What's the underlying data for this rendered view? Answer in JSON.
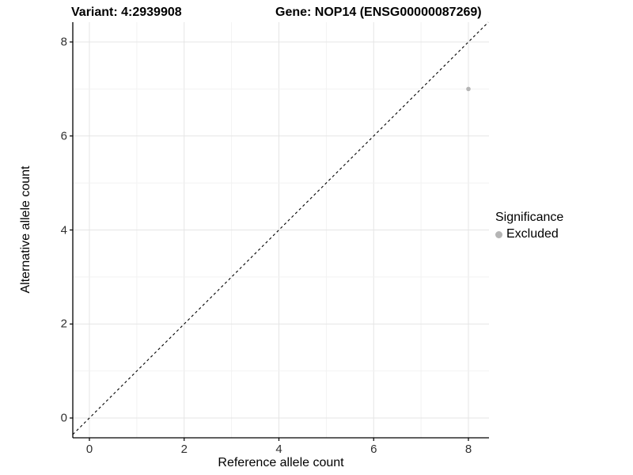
{
  "titles": {
    "variant": "Variant: 4:2939908",
    "gene": "Gene: NOP14 (ENSG00000087269)"
  },
  "chart_data": {
    "type": "scatter",
    "title_left": "Variant: 4:2939908",
    "title_right": "Gene: NOP14 (ENSG00000087269)",
    "xlabel": "Reference allele count",
    "ylabel": "Alternative allele count",
    "xlim": [
      -0.35,
      8.43
    ],
    "ylim": [
      -0.42,
      8.42
    ],
    "xticks": [
      0,
      2,
      4,
      6,
      8
    ],
    "yticks": [
      0,
      2,
      4,
      6,
      8
    ],
    "x_tick_labels": [
      "0",
      "2",
      "4",
      "6",
      "8"
    ],
    "y_tick_labels": [
      "0",
      "2",
      "4",
      "6",
      "8"
    ],
    "grid": {
      "on": true,
      "minor_step": 1,
      "major_step": 2,
      "major_color": "#e5e5e5",
      "minor_color": "#f2f2f2"
    },
    "identity_line": {
      "equation": "y = x",
      "style": "dashed",
      "color": "#000000"
    },
    "series": [
      {
        "name": "Excluded",
        "color": "#b5b5b5",
        "points": [
          {
            "x": 8,
            "y": 7
          }
        ]
      }
    ],
    "legend": {
      "title": "Significance",
      "position": "right",
      "items": [
        {
          "label": "Excluded",
          "color": "#b5b5b5"
        }
      ]
    }
  },
  "colors": {
    "axis_line": "#000000",
    "tick_text": "#303030",
    "background": "#ffffff",
    "point": "#b5b5b5"
  }
}
